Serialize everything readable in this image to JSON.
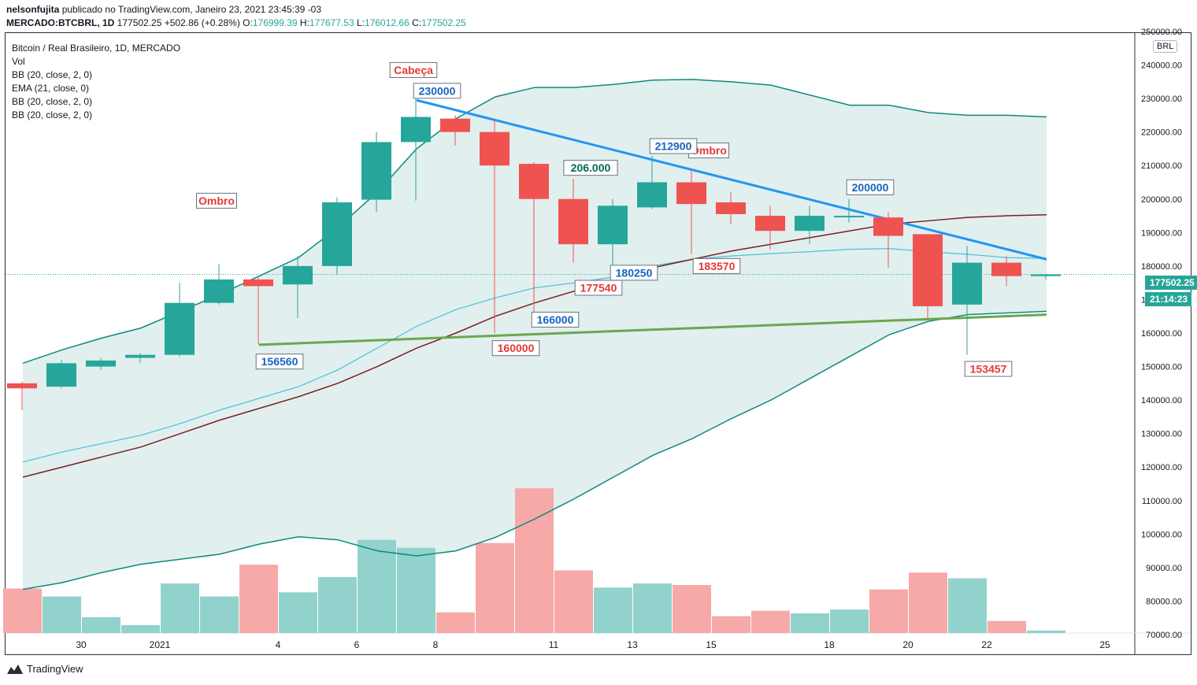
{
  "header": {
    "author": "nelsonfujita",
    "published_text": "publicado no TradingView.com, Janeiro 23, 2021 23:45:39 -03",
    "symbol": "MERCADO:BTCBRL, 1D",
    "last": "177502.25",
    "change": "+502.86 (+0.28%)",
    "o_label": "O:",
    "o_value": "176999.39",
    "h_label": "H:",
    "h_value": "177677.53",
    "l_label": "L:",
    "l_value": "176012.66",
    "c_label": "C:",
    "c_value": "177502.25"
  },
  "legend": {
    "title": "Bitcoin / Real Brasileiro, 1D, MERCADO",
    "items": [
      "Vol",
      "BB (20, close, 2, 0)",
      "EMA (21, close, 0)",
      "BB (20, close, 2, 0)",
      "BB (20, close, 2, 0)"
    ]
  },
  "footer": {
    "brand": "TradingView"
  },
  "price_scale": {
    "currency": "BRL",
    "last_price_label": "177502.25",
    "countdown_label": "21:14:23"
  },
  "colors": {
    "up": "#26a69a",
    "down": "#ef5350",
    "up_volume": "#92d2cc",
    "down_volume": "#f6a9a7",
    "bb_line": "#0e8a7e",
    "bb_fill": "#dcecec",
    "ema": "#7a2020",
    "basis": "#4ac0d8",
    "trendline": "#2196f3",
    "neckline": "#6aa84f",
    "annotation_red": "#e53935",
    "annotation_blue": "#1565c0",
    "annotation_teal": "#00695c"
  },
  "chart_data": {
    "type": "candlestick",
    "y_range": [
      68000,
      255000
    ],
    "y_ticks": [
      70000,
      80000,
      90000,
      100000,
      110000,
      120000,
      130000,
      140000,
      150000,
      160000,
      170000,
      180000,
      190000,
      200000,
      210000,
      220000,
      230000,
      240000,
      250000
    ],
    "x_ticks": [
      {
        "label": "30",
        "index": 1.5
      },
      {
        "label": "2021",
        "index": 3.5
      },
      {
        "label": "4",
        "index": 6.5
      },
      {
        "label": "6",
        "index": 8.5
      },
      {
        "label": "8",
        "index": 10.5
      },
      {
        "label": "11",
        "index": 13.5
      },
      {
        "label": "13",
        "index": 15.5
      },
      {
        "label": "15",
        "index": 17.5
      },
      {
        "label": "18",
        "index": 20.5
      },
      {
        "label": "20",
        "index": 22.5
      },
      {
        "label": "22",
        "index": 24.5
      },
      {
        "label": "25",
        "index": 27.5
      }
    ],
    "candles": [
      {
        "o": 145000,
        "h": 145500,
        "l": 137000,
        "c": 143500,
        "v": 83000
      },
      {
        "o": 144000,
        "h": 152000,
        "l": 143500,
        "c": 151000,
        "v": 80500
      },
      {
        "o": 150000,
        "h": 152500,
        "l": 149000,
        "c": 151800,
        "v": 74000
      },
      {
        "o": 152600,
        "h": 154000,
        "l": 151000,
        "c": 153500,
        "v": 71500
      },
      {
        "o": 153500,
        "h": 175000,
        "l": 153000,
        "c": 169000,
        "v": 84600
      },
      {
        "o": 169000,
        "h": 180500,
        "l": 168500,
        "c": 176000,
        "v": 80500
      },
      {
        "o": 176000,
        "h": 176500,
        "l": 156560,
        "c": 174000,
        "v": 90500
      },
      {
        "o": 174500,
        "h": 183000,
        "l": 164500,
        "c": 180000,
        "v": 81800
      },
      {
        "o": 180000,
        "h": 200500,
        "l": 177540,
        "c": 199000,
        "v": 86600
      },
      {
        "o": 199800,
        "h": 220000,
        "l": 196000,
        "c": 217000,
        "v": 98300
      },
      {
        "o": 217000,
        "h": 230000,
        "l": 199500,
        "c": 224500,
        "v": 95800
      },
      {
        "o": 224000,
        "h": 225000,
        "l": 216000,
        "c": 220000,
        "v": 75500
      },
      {
        "o": 220000,
        "h": 224000,
        "l": 160000,
        "c": 210000,
        "v": 97300
      },
      {
        "o": 210500,
        "h": 211000,
        "l": 166000,
        "c": 200000,
        "v": 114500
      },
      {
        "o": 200000,
        "h": 206000,
        "l": 181000,
        "c": 186500,
        "v": 88700
      },
      {
        "o": 186500,
        "h": 200000,
        "l": 180250,
        "c": 198000,
        "v": 83300
      },
      {
        "o": 197500,
        "h": 212900,
        "l": 197000,
        "c": 205000,
        "v": 84600
      },
      {
        "o": 205000,
        "h": 209000,
        "l": 183570,
        "c": 198500,
        "v": 84100
      },
      {
        "o": 199000,
        "h": 202000,
        "l": 192500,
        "c": 195500,
        "v": 74300
      },
      {
        "o": 195000,
        "h": 198000,
        "l": 185000,
        "c": 190500,
        "v": 76000
      },
      {
        "o": 190500,
        "h": 198000,
        "l": 186500,
        "c": 195000,
        "v": 75200
      },
      {
        "o": 195000,
        "h": 200000,
        "l": 193000,
        "c": 195000,
        "v": 76400
      },
      {
        "o": 194500,
        "h": 196000,
        "l": 179500,
        "c": 189000,
        "v": 82700
      },
      {
        "o": 189500,
        "h": 189500,
        "l": 164000,
        "c": 168000,
        "v": 88000
      },
      {
        "o": 168500,
        "h": 186000,
        "l": 153457,
        "c": 181000,
        "v": 86200
      },
      {
        "o": 181000,
        "h": 183000,
        "l": 174000,
        "c": 177000,
        "v": 72800
      },
      {
        "o": 176999.39,
        "h": 177677.53,
        "l": 176012.66,
        "c": 177502.25,
        "v": 69800
      }
    ],
    "bb_upper": [
      151000,
      155000,
      158500,
      161500,
      166500,
      171500,
      177000,
      182500,
      191500,
      202000,
      215000,
      224000,
      230500,
      233300,
      233300,
      234200,
      235500,
      235700,
      235000,
      234000,
      231000,
      228000,
      228000,
      225800,
      225000,
      225000,
      224500
    ],
    "bb_lower": [
      83500,
      85500,
      88500,
      91000,
      92500,
      94000,
      97000,
      99200,
      98300,
      95000,
      93500,
      95000,
      99000,
      104500,
      110500,
      117000,
      123500,
      128500,
      134500,
      140000,
      146500,
      153000,
      159500,
      163500,
      165500,
      166000,
      166500
    ],
    "basis": [
      121500,
      124500,
      127000,
      129500,
      133000,
      137000,
      140500,
      144000,
      149000,
      155500,
      162000,
      167000,
      170500,
      173500,
      175000,
      176700,
      180000,
      182000,
      183000,
      183700,
      184300,
      185000,
      185200,
      184300,
      183500,
      182500,
      182300
    ],
    "ema21": [
      117000,
      120000,
      123000,
      126000,
      130000,
      134000,
      137500,
      141000,
      145000,
      150000,
      155500,
      160000,
      165000,
      169000,
      172500,
      176000,
      179500,
      182000,
      184500,
      186500,
      188500,
      190500,
      192500,
      193500,
      194500,
      195000,
      195300
    ],
    "lines": [
      {
        "name": "resistance-trendline",
        "from": {
          "index": 10,
          "price": 229500
        },
        "to": {
          "index": 26,
          "price": 182000
        }
      },
      {
        "name": "neckline",
        "from": {
          "index": 6,
          "price": 156500
        },
        "to": {
          "index": 26,
          "price": 165500
        }
      }
    ],
    "annotations": [
      {
        "text": "Ombro",
        "index": 5,
        "price": 199500,
        "style": "red"
      },
      {
        "text": "Cabeça",
        "index": 10,
        "price": 238500,
        "style": "red"
      },
      {
        "text": "Ombro",
        "index": 17.5,
        "price": 214500,
        "style": "red"
      },
      {
        "text": "230000",
        "index": 10.6,
        "price": 232300,
        "style": "blue"
      },
      {
        "text": "212900",
        "index": 16.6,
        "price": 215800,
        "style": "blue"
      },
      {
        "text": "206.000",
        "index": 14.5,
        "price": 209300,
        "style": "teal"
      },
      {
        "text": "200000",
        "index": 21.6,
        "price": 203500,
        "style": "blue"
      },
      {
        "text": "180250",
        "index": 15.6,
        "price": 178000,
        "style": "blue"
      },
      {
        "text": "183570",
        "index": 17.7,
        "price": 180000,
        "style": "red"
      },
      {
        "text": "177540",
        "index": 14.7,
        "price": 173500,
        "style": "red"
      },
      {
        "text": "166000",
        "index": 13.6,
        "price": 164000,
        "style": "blue"
      },
      {
        "text": "160000",
        "index": 12.6,
        "price": 155500,
        "style": "red"
      },
      {
        "text": "156560",
        "index": 6.6,
        "price": 151500,
        "style": "blue"
      },
      {
        "text": "153457",
        "index": 24.6,
        "price": 149300,
        "style": "red"
      }
    ]
  }
}
